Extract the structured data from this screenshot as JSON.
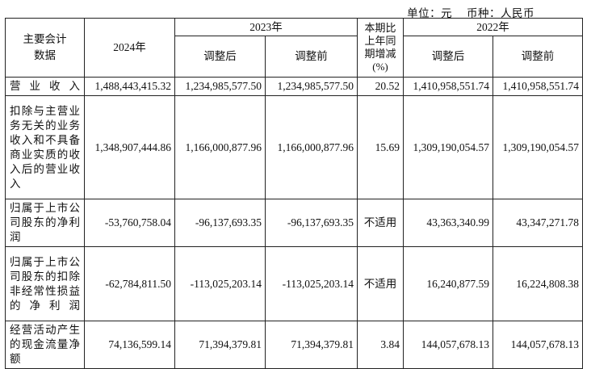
{
  "unit_line": {
    "unit": "单位：元",
    "currency": "币种：人民币"
  },
  "table": {
    "header": {
      "col0": "主要会计数据",
      "col1": "2024年",
      "group2023": "2023年",
      "col_change": "本期比上年同期增减(%)",
      "group2022": "2022年",
      "adjusted_after": "调整后",
      "adjusted_before": "调整前"
    },
    "rows": [
      {
        "label": "营业收入",
        "v2024": "1,488,443,415.32",
        "v2023_after": "1,234,985,577.50",
        "v2023_before": "1,234,985,577.50",
        "change": "20.52",
        "v2022_after": "1,410,958,551.74",
        "v2022_before": "1,410,958,551.74"
      },
      {
        "label": "扣除与主营业务无关的业务收入和不具备商业实质的收入后的营业收入",
        "v2024": "1,348,907,444.86",
        "v2023_after": "1,166,000,877.96",
        "v2023_before": "1,166,000,877.96",
        "change": "15.69",
        "v2022_after": "1,309,190,054.57",
        "v2022_before": "1,309,190,054.57"
      },
      {
        "label": "归属于上市公司股东的净利润",
        "v2024": "-53,760,758.04",
        "v2023_after": "-96,137,693.35",
        "v2023_before": "-96,137,693.35",
        "change": "不适用",
        "v2022_after": "43,363,340.99",
        "v2022_before": "43,347,271.78"
      },
      {
        "label": "归属于上市公司股东的扣除非经常性损益的净利润",
        "v2024": "-62,784,811.50",
        "v2023_after": "-113,025,203.14",
        "v2023_before": "-113,025,203.14",
        "change": "不适用",
        "v2022_after": "16,240,877.59",
        "v2022_before": "16,224,808.38"
      },
      {
        "label": "经营活动产生的现金流量净额",
        "v2024": "74,136,599.14",
        "v2023_after": "71,394,379.81",
        "v2023_before": "71,394,379.81",
        "change": "3.84",
        "v2022_after": "144,057,678.13",
        "v2022_before": "144,057,678.13"
      }
    ]
  }
}
